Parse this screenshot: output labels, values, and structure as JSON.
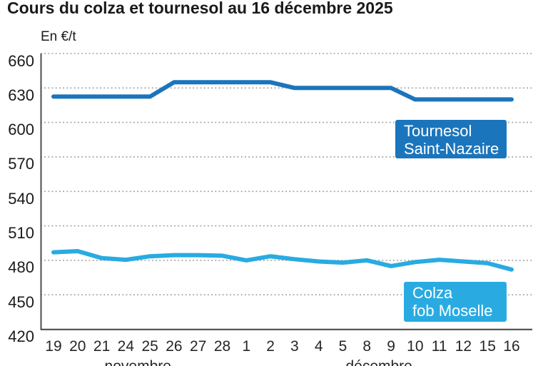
{
  "title": "Cours du colza et tournesol au 16 décembre 2025",
  "unit_label": "En €/t",
  "chart_data": {
    "type": "line",
    "title": "Cours du colza et tournesol au 16 décembre 2025",
    "ylabel": "En €/t",
    "xlabel": "",
    "categories": [
      "19",
      "20",
      "21",
      "24",
      "25",
      "26",
      "27",
      "28",
      "1",
      "2",
      "3",
      "4",
      "5",
      "8",
      "9",
      "10",
      "11",
      "12",
      "15",
      "16"
    ],
    "month_groups": [
      {
        "label": "novembre",
        "from": 0,
        "to": 7
      },
      {
        "label": "décembre",
        "from": 8,
        "to": 19
      }
    ],
    "series": [
      {
        "name": "Tournesol Saint-Nazaire",
        "label_lines": [
          "Tournesol",
          "Saint-Nazaire"
        ],
        "color": "#1b75bc",
        "values": [
          622.5,
          622.5,
          622.5,
          622.5,
          622.5,
          635,
          635,
          635,
          635,
          635,
          630,
          630,
          630,
          630,
          630,
          620,
          620,
          620,
          620,
          620
        ]
      },
      {
        "name": "Colza fob Moselle",
        "label_lines": [
          "Colza",
          "fob Moselle"
        ],
        "color": "#29abe2",
        "values": [
          487,
          488,
          482,
          480.5,
          483.5,
          484.5,
          484.5,
          484,
          480,
          483.5,
          481,
          479,
          478,
          480,
          475,
          478.5,
          480.5,
          479,
          477.5,
          472
        ]
      }
    ],
    "y_ticks": [
      660,
      630,
      600,
      570,
      540,
      510,
      480,
      450,
      420
    ],
    "ylim": [
      420,
      660
    ],
    "grid": "dotted-horizontal",
    "grid_color": "#9b9b9b",
    "axis_color": "#4d4d4d",
    "legend_position": "labels-on-chart-right"
  }
}
